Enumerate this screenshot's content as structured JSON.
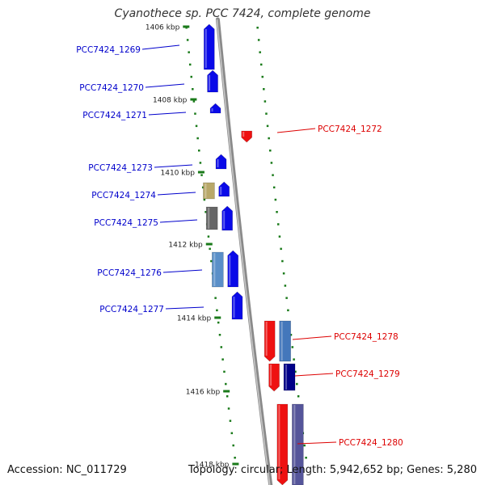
{
  "title": "Cyanothece sp. PCC 7424, complete genome",
  "footer": {
    "accession": "Accession: NC_011729",
    "summary": "Topology: circular; Length: 5,942,652 bp; Genes: 5,280"
  },
  "colors": {
    "forward_label": "#0000cc",
    "reverse_label": "#dd0000",
    "tick": "#1a7a1a",
    "backbone": "#8a8a8a"
  },
  "ticks": [
    {
      "label": "1406 kbp"
    },
    {
      "label": "1408 kbp"
    },
    {
      "label": "1410 kbp"
    },
    {
      "label": "1412 kbp"
    },
    {
      "label": "1414 kbp"
    },
    {
      "label": "1416 kbp"
    },
    {
      "label": "1418 kbp"
    }
  ],
  "genes": [
    {
      "label": "PCC7424_1269",
      "strand": "+",
      "color": "#0a0ae8"
    },
    {
      "label": "PCC7424_1270",
      "strand": "+",
      "color": "#0a0ae8"
    },
    {
      "label": "PCC7424_1271",
      "strand": "+",
      "color": "#0a0ae8"
    },
    {
      "label": "PCC7424_1272",
      "strand": "-",
      "color": "#ee1111"
    },
    {
      "label": "PCC7424_1273",
      "strand": "+",
      "color": "#0a0ae8"
    },
    {
      "label": "PCC7424_1274",
      "strand": "+",
      "color": "#0a0ae8"
    },
    {
      "label": "PCC7424_1275",
      "strand": "+",
      "color": "#0a0ae8"
    },
    {
      "label": "PCC7424_1276",
      "strand": "+",
      "color": "#0a0ae8"
    },
    {
      "label": "PCC7424_1277",
      "strand": "+",
      "color": "#0a0ae8"
    },
    {
      "label": "PCC7424_1278",
      "strand": "-",
      "color": "#ee1111"
    },
    {
      "label": "PCC7424_1279",
      "strand": "-",
      "color": "#ee1111"
    },
    {
      "label": "PCC7424_1280",
      "strand": "-",
      "color": "#ee1111"
    }
  ],
  "cog_colors": [
    "#b8a86a",
    "#666666",
    "#5a8fc8",
    "#4477bb",
    "#000088",
    "#55559a"
  ]
}
